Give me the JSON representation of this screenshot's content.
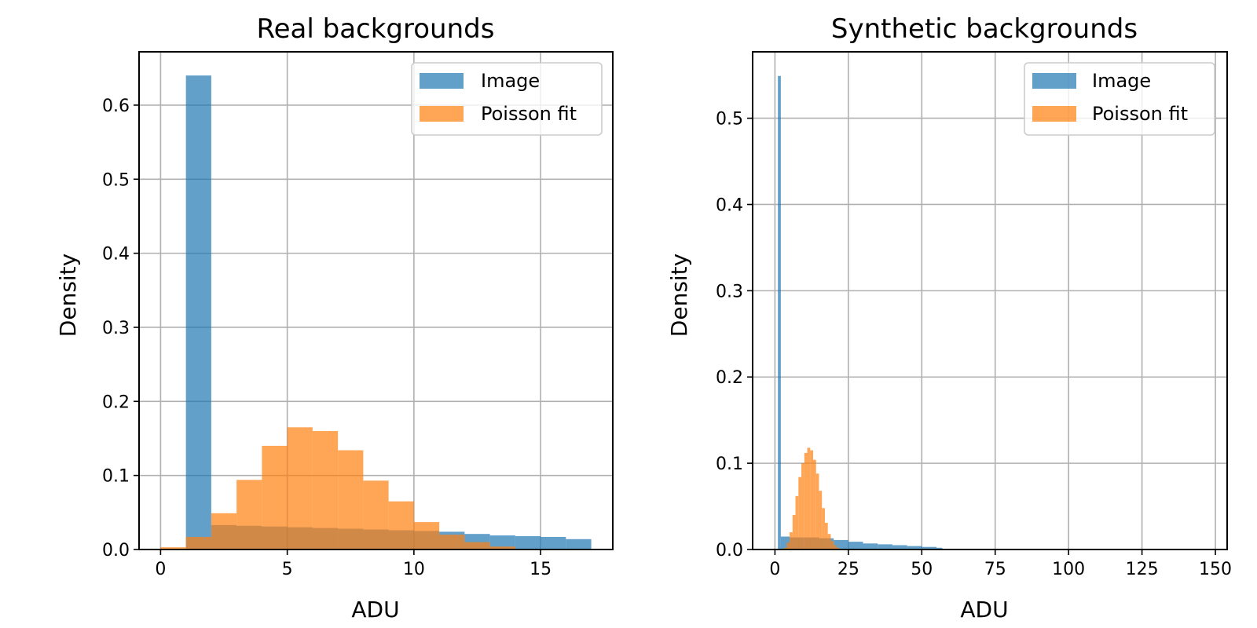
{
  "figure": {
    "colors": {
      "image": "#1f77b4",
      "poisson": "#ff7f0e",
      "grid": "#b0b0b0"
    }
  },
  "chart_data": [
    {
      "type": "bar",
      "title": "Real backgrounds",
      "xlabel": "ADU",
      "ylabel": "Density",
      "xlim": [
        -0.85,
        17.85
      ],
      "ylim": [
        0,
        0.672
      ],
      "xticks": [
        0,
        5,
        10,
        15
      ],
      "xtick_labels": [
        "0",
        "5",
        "10",
        "15"
      ],
      "yticks": [
        0,
        0.1,
        0.2,
        0.3,
        0.4,
        0.5,
        0.6
      ],
      "ytick_labels": [
        "0.0",
        "0.1",
        "0.2",
        "0.3",
        "0.4",
        "0.5",
        "0.6"
      ],
      "grid": true,
      "legend": {
        "position": "top-right",
        "entries": [
          "Image",
          "Poisson fit"
        ]
      },
      "series": [
        {
          "name": "Image",
          "color": "#1f77b4",
          "alpha": 0.7,
          "bin_edges": [
            1,
            2,
            3,
            4,
            5,
            6,
            7,
            8,
            9,
            10,
            11,
            12,
            13,
            14,
            15,
            16,
            17
          ],
          "values": [
            0.64,
            0.033,
            0.032,
            0.031,
            0.03,
            0.029,
            0.028,
            0.027,
            0.026,
            0.025,
            0.024,
            0.021,
            0.019,
            0.018,
            0.017,
            0.014
          ]
        },
        {
          "name": "Poisson fit",
          "color": "#ff7f0e",
          "alpha": 0.7,
          "bin_edges": [
            0,
            1,
            2,
            3,
            4,
            5,
            6,
            7,
            8,
            9,
            10,
            11,
            12,
            13,
            14
          ],
          "values": [
            0.003,
            0.017,
            0.049,
            0.094,
            0.14,
            0.165,
            0.16,
            0.134,
            0.093,
            0.065,
            0.037,
            0.02,
            0.01,
            0.004
          ]
        }
      ]
    },
    {
      "type": "bar",
      "title": "Synthetic backgrounds",
      "xlabel": "ADU",
      "ylabel": "Density",
      "xlim": [
        -7.6,
        154.0
      ],
      "ylim": [
        0,
        0.577
      ],
      "xticks": [
        0,
        25,
        50,
        75,
        100,
        125,
        150
      ],
      "xtick_labels": [
        "0",
        "25",
        "50",
        "75",
        "100",
        "125",
        "150"
      ],
      "yticks": [
        0,
        0.1,
        0.2,
        0.3,
        0.4,
        0.5
      ],
      "ytick_labels": [
        "0.0",
        "0.1",
        "0.2",
        "0.3",
        "0.4",
        "0.5"
      ],
      "grid": true,
      "legend": {
        "position": "top-right",
        "entries": [
          "Image",
          "Poisson fit"
        ]
      },
      "series": [
        {
          "name": "Image",
          "color": "#1f77b4",
          "alpha": 0.7,
          "bin_edges": [
            1,
            2,
            5,
            10,
            15,
            20,
            25,
            30,
            35,
            40,
            45,
            50,
            55,
            57
          ],
          "values": [
            0.549,
            0.015,
            0.014,
            0.014,
            0.013,
            0.011,
            0.009,
            0.007,
            0.006,
            0.005,
            0.004,
            0.003,
            0.002
          ]
        },
        {
          "name": "Poisson fit",
          "color": "#ff7f0e",
          "alpha": 0.7,
          "bin_edges": [
            3,
            4,
            5,
            6,
            7,
            8,
            9,
            10,
            11,
            12,
            13,
            14,
            15,
            16,
            17,
            18,
            19,
            20,
            21,
            22
          ],
          "values": [
            0.002,
            0.008,
            0.02,
            0.04,
            0.062,
            0.084,
            0.1,
            0.112,
            0.118,
            0.115,
            0.104,
            0.088,
            0.068,
            0.048,
            0.031,
            0.018,
            0.01,
            0.005,
            0.002
          ]
        }
      ]
    }
  ]
}
